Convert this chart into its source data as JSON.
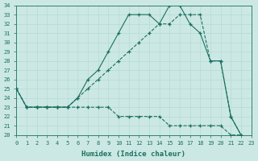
{
  "xlabel": "Humidex (Indice chaleur)",
  "xlim": [
    0,
    23
  ],
  "ylim": [
    20,
    34
  ],
  "bg_color": "#cce8e4",
  "line_color": "#1a7060",
  "grid_color": "#b8ddd8",
  "lines": [
    {
      "x": [
        0,
        1,
        2,
        3,
        4,
        5,
        6,
        7,
        8,
        9,
        10,
        11,
        12,
        13,
        14,
        15,
        16,
        17,
        18,
        19,
        20,
        21,
        22
      ],
      "y": [
        25,
        23,
        23,
        23,
        23,
        23,
        24,
        26,
        27,
        29,
        31,
        33,
        33,
        33,
        32,
        34,
        34,
        32,
        31,
        28,
        28,
        22,
        20
      ],
      "marker": true,
      "dashed": false
    },
    {
      "x": [
        0,
        1,
        2,
        3,
        4,
        5,
        6,
        7,
        8,
        9,
        10,
        11,
        12,
        13,
        14,
        15,
        16,
        17,
        18,
        19,
        20,
        21,
        22
      ],
      "y": [
        25,
        23,
        23,
        23,
        23,
        23,
        24,
        25,
        26,
        27,
        28,
        29,
        30,
        31,
        32,
        32,
        33,
        33,
        33,
        28,
        28,
        22,
        20
      ],
      "marker": true,
      "dashed": true
    },
    {
      "x": [
        0,
        1,
        2,
        3,
        4,
        5,
        6,
        7,
        8,
        9,
        10,
        11,
        12,
        13,
        14,
        15,
        16,
        17,
        18,
        19,
        20,
        21,
        22
      ],
      "y": [
        25,
        23,
        23,
        23,
        23,
        23,
        23,
        23,
        23,
        23,
        22,
        22,
        22,
        22,
        22,
        21,
        21,
        21,
        21,
        21,
        21,
        20,
        20
      ],
      "marker": true,
      "dashed": true
    }
  ]
}
